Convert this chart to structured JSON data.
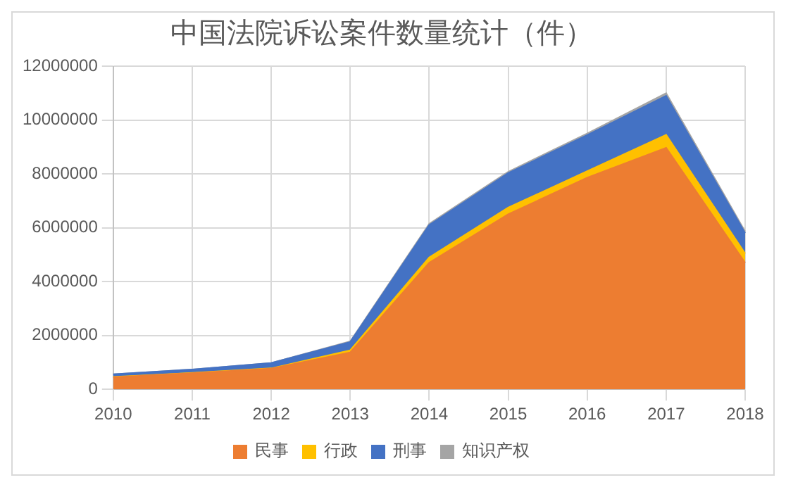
{
  "chart_data": {
    "type": "area",
    "title": "中国法院诉讼案件数量统计（件）",
    "stacked": true,
    "categories": [
      "2010",
      "2011",
      "2012",
      "2013",
      "2014",
      "2015",
      "2016",
      "2017",
      "2018"
    ],
    "series": [
      {
        "name": "民事",
        "color": "#ed7d31",
        "values": [
          450000,
          600000,
          770000,
          1370000,
          4700000,
          6500000,
          7860000,
          8970000,
          4700000
        ]
      },
      {
        "name": "行政",
        "color": "#ffc000",
        "values": [
          10000,
          10000,
          10000,
          80000,
          200000,
          250000,
          240000,
          480000,
          340000
        ]
      },
      {
        "name": "刑事",
        "color": "#4472c4",
        "values": [
          100000,
          130000,
          200000,
          310000,
          1200000,
          1280000,
          1340000,
          1450000,
          760000
        ]
      },
      {
        "name": "知识产权",
        "color": "#a5a5a5",
        "values": [
          0,
          0,
          0,
          20000,
          50000,
          50000,
          60000,
          100000,
          60000
        ]
      }
    ],
    "ylim": [
      0,
      12000000
    ],
    "yticks": [
      0,
      2000000,
      4000000,
      6000000,
      8000000,
      10000000,
      12000000
    ],
    "grid": true,
    "legend": "bottom"
  }
}
